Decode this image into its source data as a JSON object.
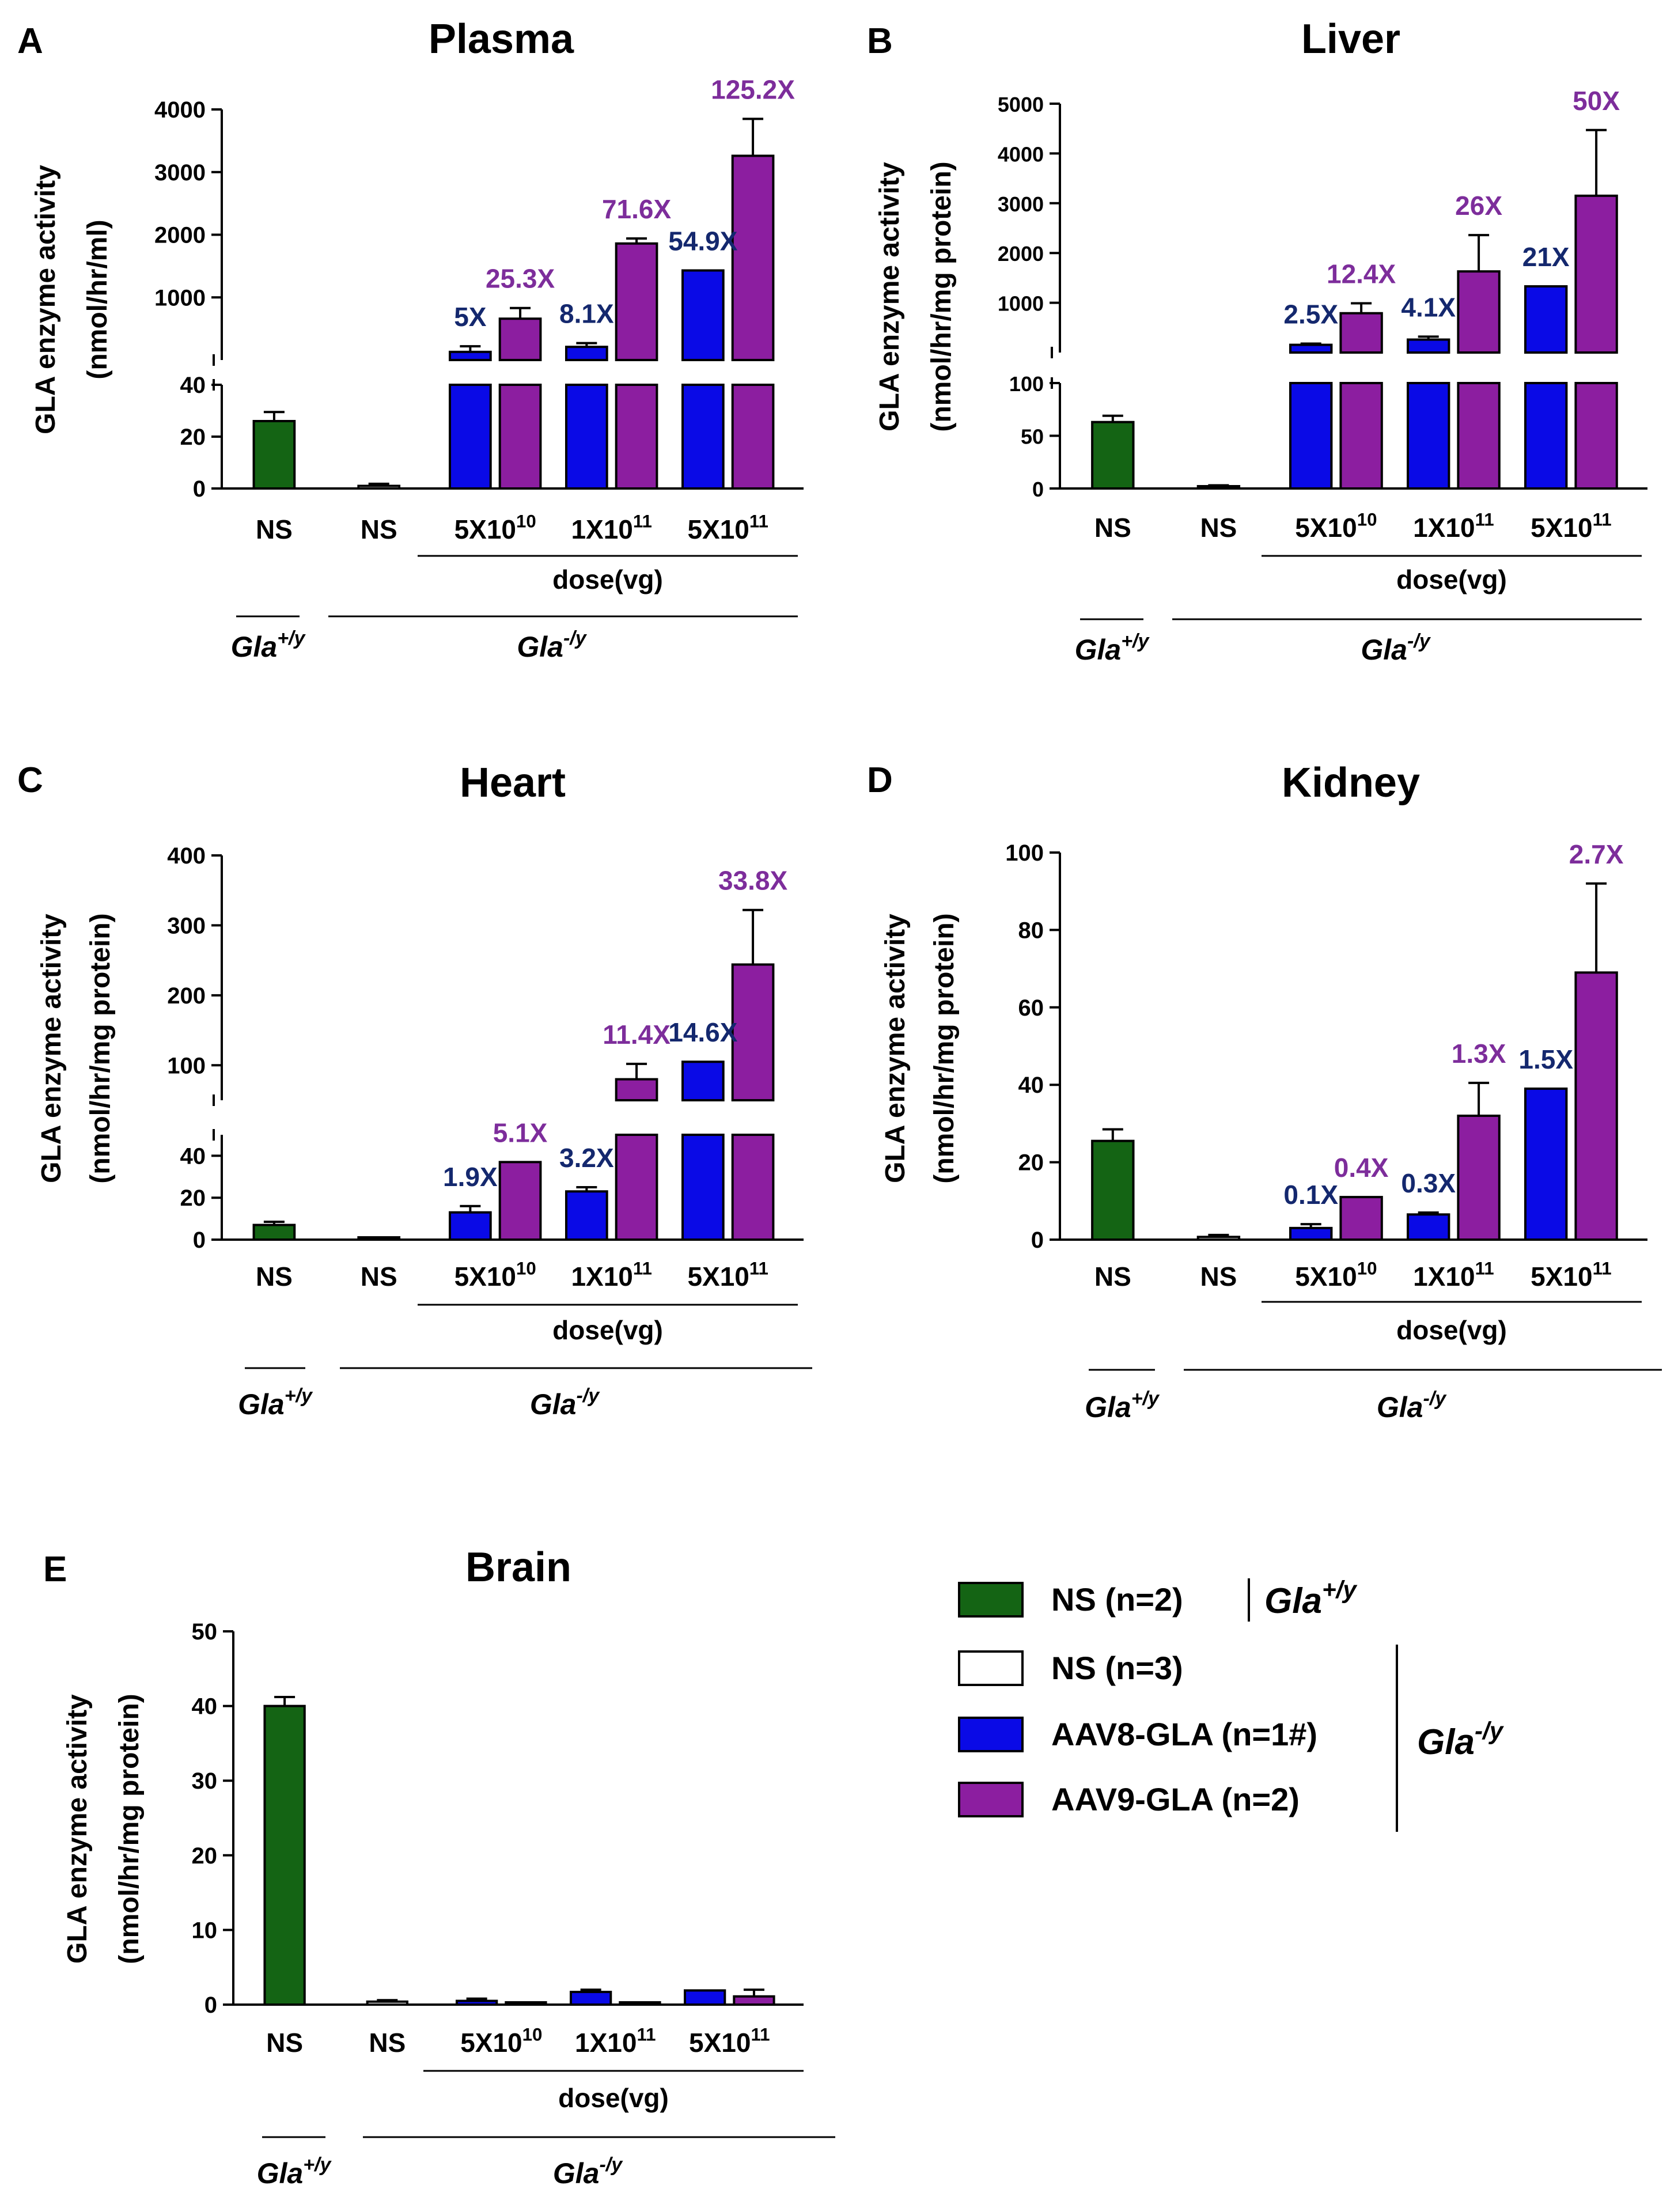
{
  "colors": {
    "wt_green": "#146414",
    "aav8_blue": "#0a0ae6",
    "aav9_purple": "#8c1ea0",
    "label_navy": "#14286e",
    "label_purple": "#7d2d9b",
    "axis": "#000000"
  },
  "common": {
    "ylabel_line1": "GLA enzyme activity",
    "ns_label": "NS",
    "dose_label": "dose(vg)",
    "dose_ticks": [
      {
        "base": "5X10",
        "exp": "10"
      },
      {
        "base": "1X10",
        "exp": "11"
      },
      {
        "base": "5X10",
        "exp": "11"
      }
    ],
    "genotype_wt": {
      "base": "Gla",
      "sup": "+/y"
    },
    "genotype_ko": {
      "base": "Gla",
      "sup": "-/y"
    }
  },
  "chart_data": [
    {
      "panel": "A",
      "type": "bar",
      "title": "Plasma",
      "ylabel": "GLA enzyme activity (nmol/hr/ml)",
      "categories": [
        "NS",
        "NS",
        "5X10^10",
        "1X10^11",
        "5X10^11"
      ],
      "broken_axis": {
        "lower": [
          0,
          40
        ],
        "upper": [
          0,
          4000
        ]
      },
      "lower_ticks": [
        0,
        20,
        40
      ],
      "upper_ticks": [
        1000,
        2000,
        3000,
        4000
      ],
      "series": [
        {
          "name": "NS (n=2) Gla+/y",
          "values": [
            26,
            null,
            null,
            null,
            null
          ],
          "errors": [
            3.5,
            null,
            null,
            null,
            null
          ]
        },
        {
          "name": "NS (n=3) Gla-/y",
          "values": [
            null,
            1,
            null,
            null,
            null
          ],
          "errors": [
            null,
            0.8,
            null,
            null,
            null
          ]
        },
        {
          "name": "AAV8-GLA (n=1#)",
          "values": [
            null,
            null,
            130,
            210,
            1430
          ],
          "errors": [
            null,
            null,
            90,
            60,
            0
          ]
        },
        {
          "name": "AAV9-GLA (n=2)",
          "values": [
            null,
            null,
            660,
            1860,
            3260
          ],
          "errors": [
            null,
            null,
            170,
            80,
            590
          ]
        }
      ],
      "annotations": [
        {
          "group": 2,
          "series": "AAV8",
          "text": "5X"
        },
        {
          "group": 2,
          "series": "AAV9",
          "text": "25.3X"
        },
        {
          "group": 3,
          "series": "AAV8",
          "text": "8.1X"
        },
        {
          "group": 3,
          "series": "AAV9",
          "text": "71.6X"
        },
        {
          "group": 4,
          "series": "AAV8",
          "text": "54.9X"
        },
        {
          "group": 4,
          "series": "AAV9",
          "text": "125.2X"
        }
      ]
    },
    {
      "panel": "B",
      "type": "bar",
      "title": "Liver",
      "ylabel": "GLA enzyme activity (nmol/hr/mg protein)",
      "categories": [
        "NS",
        "NS",
        "5X10^10",
        "1X10^11",
        "5X10^11"
      ],
      "broken_axis": {
        "lower": [
          0,
          100
        ],
        "upper": [
          0,
          5000
        ]
      },
      "lower_ticks": [
        0,
        50,
        100
      ],
      "upper_ticks": [
        1000,
        2000,
        3000,
        4000,
        5000
      ],
      "series": [
        {
          "name": "NS (n=2) Gla+/y",
          "values": [
            63,
            null,
            null,
            null,
            null
          ],
          "errors": [
            6,
            null,
            null,
            null,
            null
          ]
        },
        {
          "name": "NS (n=3) Gla-/y",
          "values": [
            null,
            2,
            null,
            null,
            null
          ],
          "errors": [
            null,
            1,
            null,
            null,
            null
          ]
        },
        {
          "name": "AAV8-GLA (n=1#)",
          "values": [
            null,
            null,
            155,
            260,
            1330
          ],
          "errors": [
            null,
            null,
            25,
            60,
            0
          ]
        },
        {
          "name": "AAV9-GLA (n=2)",
          "values": [
            null,
            null,
            790,
            1630,
            3150
          ],
          "errors": [
            null,
            null,
            200,
            730,
            1320
          ]
        }
      ],
      "annotations": [
        {
          "group": 2,
          "series": "AAV8",
          "text": "2.5X"
        },
        {
          "group": 2,
          "series": "AAV9",
          "text": "12.4X"
        },
        {
          "group": 3,
          "series": "AAV8",
          "text": "4.1X"
        },
        {
          "group": 3,
          "series": "AAV9",
          "text": "26X"
        },
        {
          "group": 4,
          "series": "AAV8",
          "text": "21X"
        },
        {
          "group": 4,
          "series": "AAV9",
          "text": "50X"
        }
      ]
    },
    {
      "panel": "C",
      "type": "bar",
      "title": "Heart",
      "ylabel": "GLA enzyme activity (nmol/hr/mg protein)",
      "categories": [
        "NS",
        "NS",
        "5X10^10",
        "1X10^11",
        "5X10^11"
      ],
      "broken_axis": {
        "lower": [
          0,
          50
        ],
        "upper": [
          50,
          400
        ]
      },
      "lower_ticks": [
        0,
        20,
        40
      ],
      "upper_ticks": [
        100,
        200,
        300,
        400
      ],
      "series": [
        {
          "name": "NS (n=2) Gla+/y",
          "values": [
            7,
            null,
            null,
            null,
            null
          ],
          "errors": [
            1.5,
            null,
            null,
            null,
            null
          ]
        },
        {
          "name": "NS (n=3) Gla-/y",
          "values": [
            null,
            0,
            null,
            null,
            null
          ],
          "errors": [
            null,
            0,
            null,
            null,
            null
          ]
        },
        {
          "name": "AAV8-GLA (n=1#)",
          "values": [
            null,
            null,
            13,
            23,
            105
          ],
          "errors": [
            null,
            null,
            3,
            2,
            0
          ]
        },
        {
          "name": "AAV9-GLA (n=2)",
          "values": [
            null,
            null,
            37,
            80,
            244
          ],
          "errors": [
            null,
            null,
            0,
            22,
            78
          ]
        }
      ],
      "annotations": [
        {
          "group": 2,
          "series": "AAV8",
          "text": "1.9X"
        },
        {
          "group": 2,
          "series": "AAV9",
          "text": "5.1X"
        },
        {
          "group": 3,
          "series": "AAV8",
          "text": "3.2X"
        },
        {
          "group": 3,
          "series": "AAV9",
          "text": "11.4X"
        },
        {
          "group": 4,
          "series": "AAV8",
          "text": "14.6X"
        },
        {
          "group": 4,
          "series": "AAV9",
          "text": "33.8X"
        }
      ]
    },
    {
      "panel": "D",
      "type": "bar",
      "title": "Kidney",
      "ylabel": "GLA enzyme activity (nmol/hr/mg protein)",
      "categories": [
        "NS",
        "NS",
        "5X10^10",
        "1X10^11",
        "5X10^11"
      ],
      "ylim": [
        0,
        100
      ],
      "ticks": [
        0,
        20,
        40,
        60,
        80,
        100
      ],
      "series": [
        {
          "name": "NS (n=2) Gla+/y",
          "values": [
            25.5,
            null,
            null,
            null,
            null
          ],
          "errors": [
            3,
            null,
            null,
            null,
            null
          ]
        },
        {
          "name": "NS (n=3) Gla-/y",
          "values": [
            null,
            0.7,
            null,
            null,
            null
          ],
          "errors": [
            null,
            0.5,
            null,
            null,
            null
          ]
        },
        {
          "name": "AAV8-GLA (n=1#)",
          "values": [
            null,
            null,
            3,
            6.5,
            39
          ],
          "errors": [
            null,
            null,
            1,
            0.5,
            0
          ]
        },
        {
          "name": "AAV9-GLA (n=2)",
          "values": [
            null,
            null,
            11,
            32,
            69
          ],
          "errors": [
            null,
            null,
            0,
            8.5,
            23
          ]
        }
      ],
      "annotations": [
        {
          "group": 2,
          "series": "AAV8",
          "text": "0.1X"
        },
        {
          "group": 2,
          "series": "AAV9",
          "text": "0.4X"
        },
        {
          "group": 3,
          "series": "AAV8",
          "text": "0.3X"
        },
        {
          "group": 3,
          "series": "AAV9",
          "text": "1.3X"
        },
        {
          "group": 4,
          "series": "AAV8",
          "text": "1.5X"
        },
        {
          "group": 4,
          "series": "AAV9",
          "text": "2.7X"
        }
      ]
    },
    {
      "panel": "E",
      "type": "bar",
      "title": "Brain",
      "ylabel": "GLA enzyme activity (nmol/hr/mg protein)",
      "categories": [
        "NS",
        "NS",
        "5X10^10",
        "1X10^11",
        "5X10^11"
      ],
      "ylim": [
        0,
        50
      ],
      "ticks": [
        0,
        10,
        20,
        30,
        40,
        50
      ],
      "series": [
        {
          "name": "NS (n=2) Gla+/y",
          "values": [
            40,
            null,
            null,
            null,
            null
          ],
          "errors": [
            1.2,
            null,
            null,
            null,
            null
          ]
        },
        {
          "name": "NS (n=3) Gla-/y",
          "values": [
            null,
            0.4,
            null,
            null,
            null
          ],
          "errors": [
            null,
            0.2,
            null,
            null,
            null
          ]
        },
        {
          "name": "AAV8-GLA (n=1#)",
          "values": [
            null,
            null,
            0.5,
            1.7,
            1.9
          ],
          "errors": [
            null,
            null,
            0.3,
            0.3,
            0
          ]
        },
        {
          "name": "AAV9-GLA (n=2)",
          "values": [
            null,
            null,
            0,
            0.1,
            1.1
          ],
          "errors": [
            null,
            null,
            0,
            0.1,
            0.9
          ]
        }
      ],
      "annotations": []
    }
  ],
  "legend": {
    "items": [
      {
        "label": "NS (n=2)",
        "color": "#146414"
      },
      {
        "label": "NS (n=3)",
        "color": "#ffffff"
      },
      {
        "label": "AAV8-GLA (n=1#)",
        "color": "#0a0ae6"
      },
      {
        "label": "AAV9-GLA (n=2)",
        "color": "#8c1ea0"
      }
    ],
    "genotype_wt": {
      "base": "Gla",
      "sup": "+/y"
    },
    "genotype_ko": {
      "base": "Gla",
      "sup": "-/y"
    }
  }
}
